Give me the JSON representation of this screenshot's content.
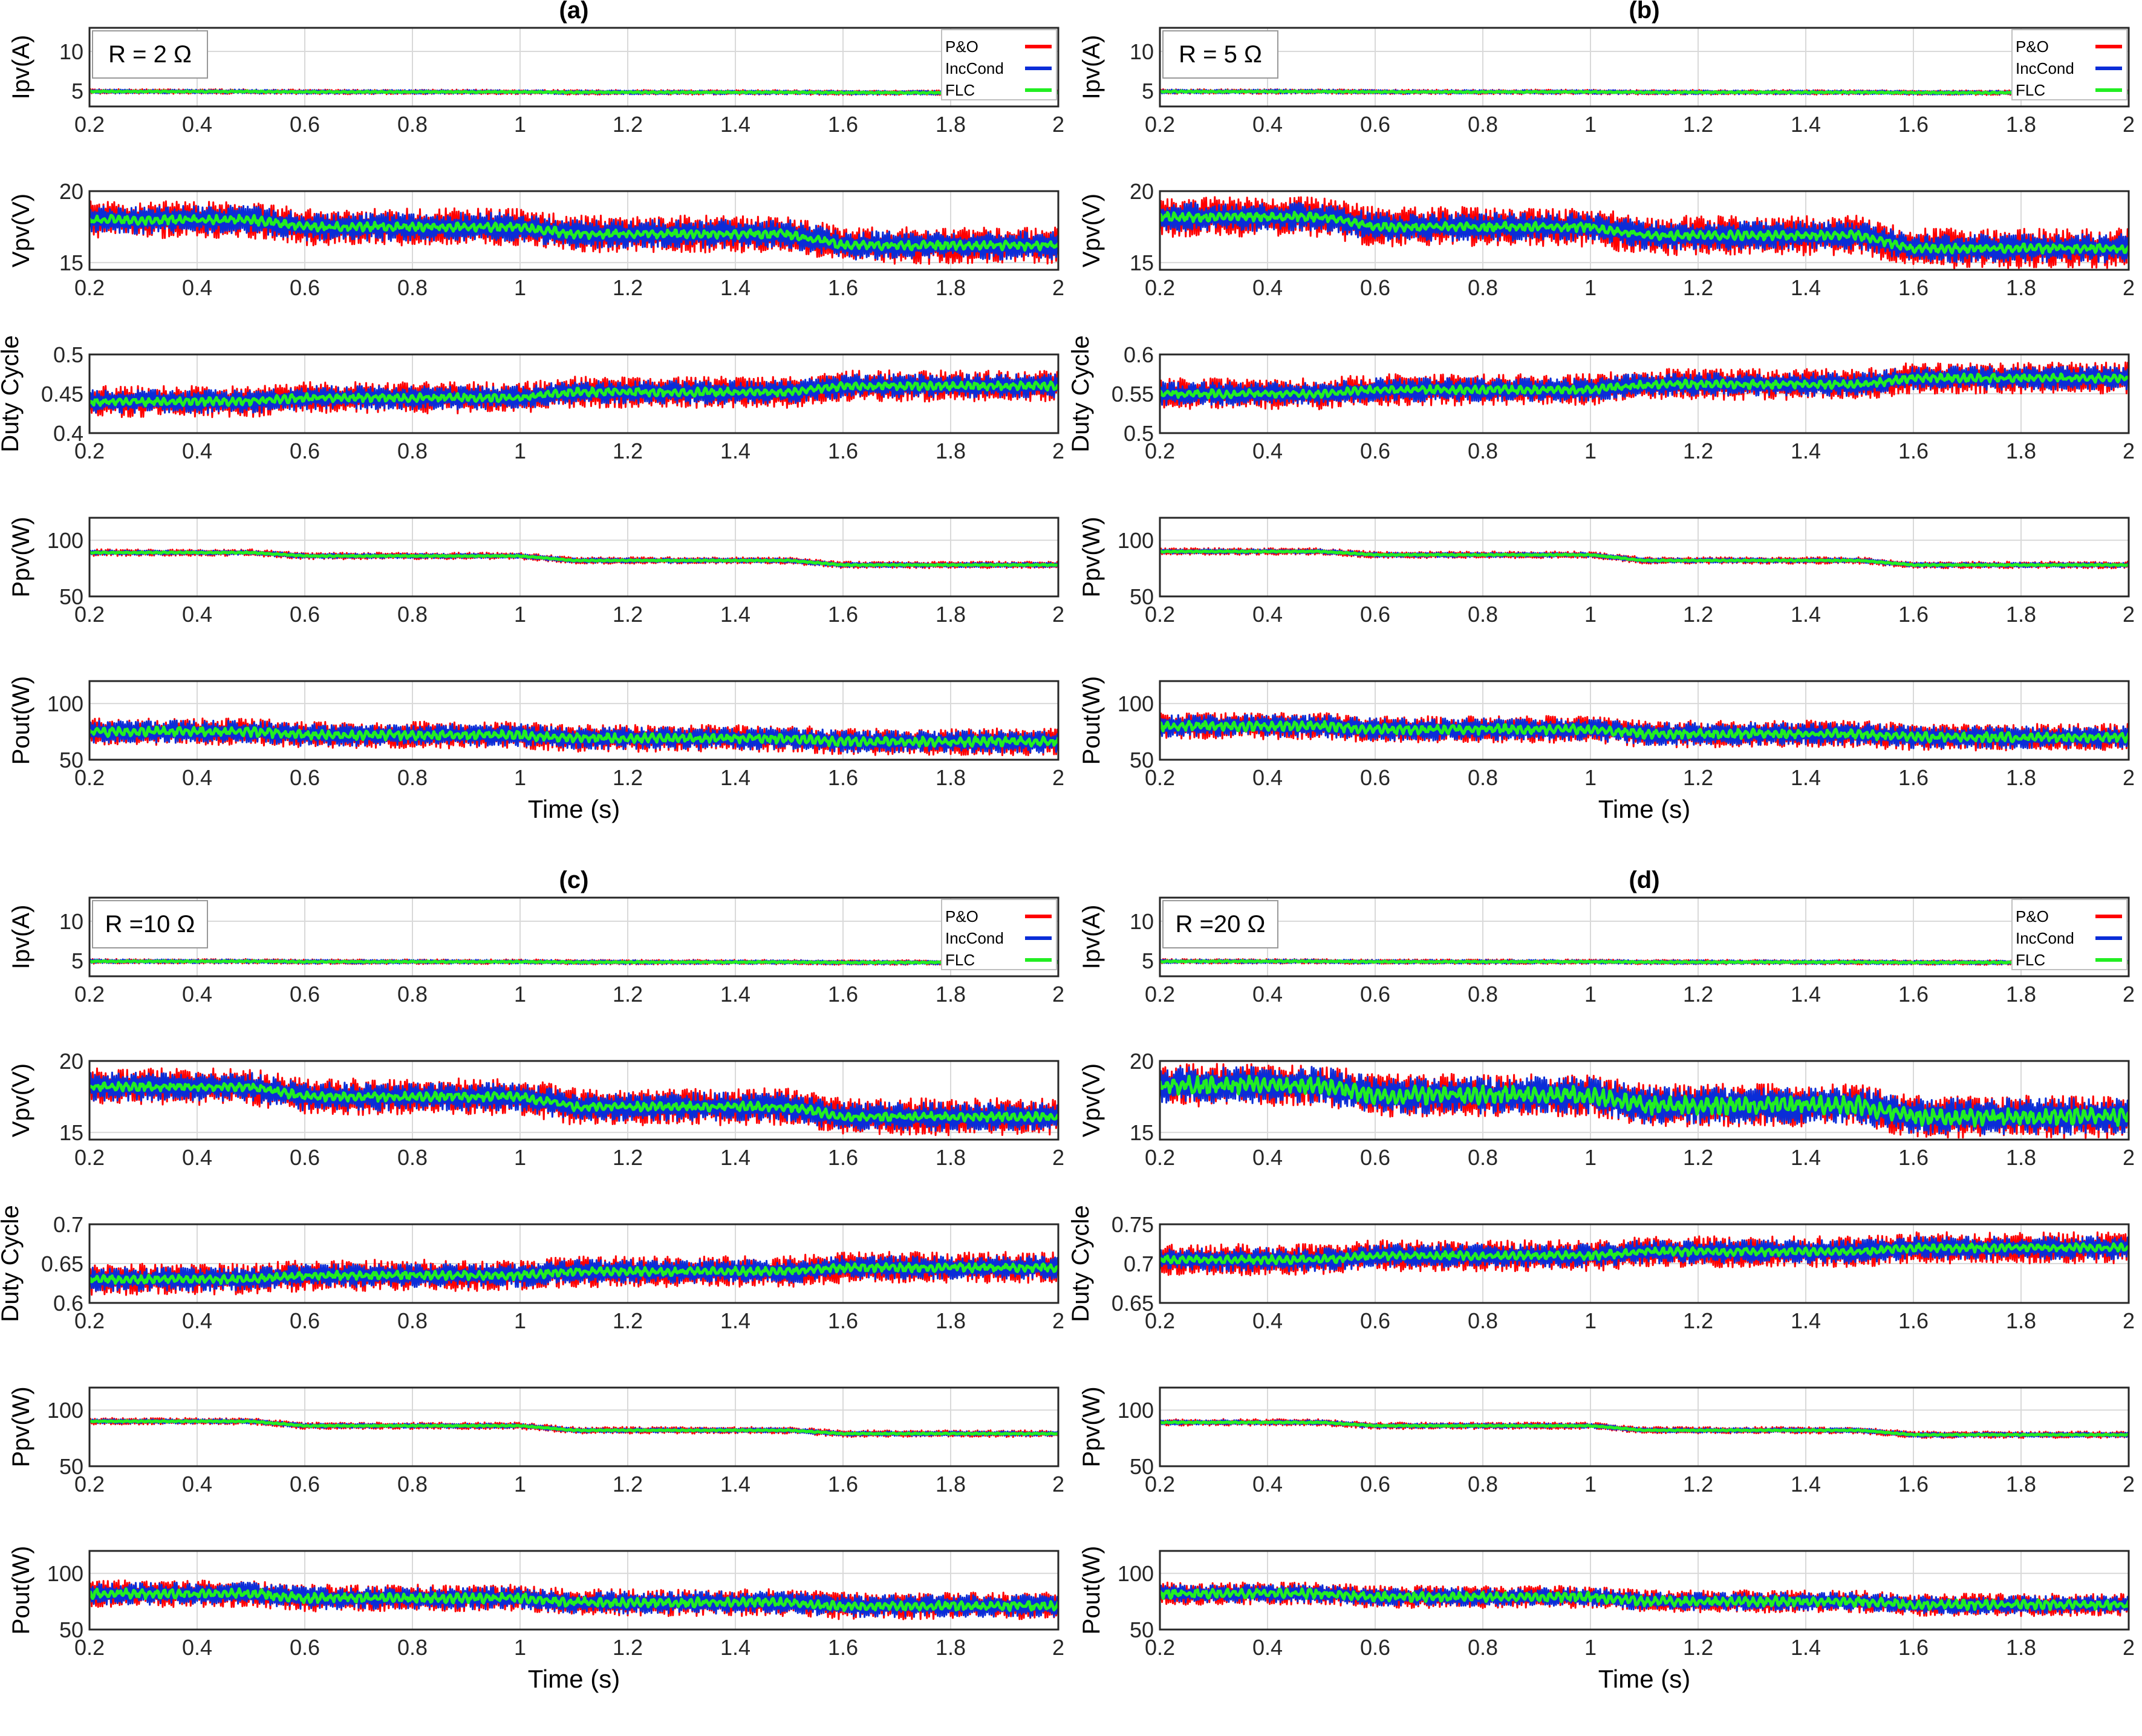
{
  "figure": {
    "legend": [
      "P&O",
      "IncCond",
      "FLC"
    ],
    "series_colors": {
      "P&O": "#ff0000",
      "IncCond": "#0a2dd8",
      "FLC": "#22ee22"
    },
    "x_label": "Time (s)",
    "x_ticks": [
      "0.2",
      "0.4",
      "0.6",
      "0.8",
      "1",
      "1.2",
      "1.4",
      "1.6",
      "1.8",
      "2"
    ]
  },
  "chart_data": [
    {
      "type": "line",
      "panel": "(a)",
      "annotation": "R = 2 Ω",
      "x": [
        0.2,
        0.5,
        0.6,
        1.0,
        1.1,
        1.5,
        1.6,
        2.0
      ],
      "xlim": [
        0.2,
        2
      ],
      "xlabel": "Time (s)",
      "subplots": [
        {
          "ylabel": "Ipv(A)",
          "ylim": [
            3,
            13
          ],
          "yticks": [
            "5",
            "10"
          ],
          "baseline": [
            4.9,
            4.9,
            4.85,
            4.85,
            4.8,
            4.8,
            4.75,
            4.75
          ],
          "noise": {
            "P&O": 0.3,
            "IncCond": 0.25,
            "FLC": 0.08
          }
        },
        {
          "ylabel": "Vpv(V)",
          "ylim": [
            14.5,
            20
          ],
          "yticks": [
            "15",
            "20"
          ],
          "baseline": [
            18,
            18,
            17.5,
            17.5,
            17,
            17,
            16.2,
            16.2
          ],
          "noise": {
            "P&O": 1.3,
            "IncCond": 1.0,
            "FLC": 0.3
          }
        },
        {
          "ylabel": "Duty Cycle",
          "ylim": [
            0.4,
            0.5
          ],
          "yticks": [
            "0.4",
            "0.45",
            "0.5"
          ],
          "baseline": [
            0.44,
            0.44,
            0.445,
            0.445,
            0.452,
            0.452,
            0.46,
            0.46
          ],
          "noise": {
            "P&O": 0.02,
            "IncCond": 0.015,
            "FLC": 0.005
          }
        },
        {
          "ylabel": "Ppv(W)",
          "ylim": [
            50,
            120
          ],
          "yticks": [
            "50",
            "100"
          ],
          "baseline": [
            89,
            89,
            86,
            86,
            82,
            82,
            78,
            78
          ],
          "noise": {
            "P&O": 3,
            "IncCond": 2,
            "FLC": 0.5
          }
        },
        {
          "ylabel": "Pout(W)",
          "ylim": [
            50,
            120
          ],
          "yticks": [
            "50",
            "100"
          ],
          "baseline": [
            75,
            75,
            72,
            72,
            69,
            69,
            66,
            66
          ],
          "noise": {
            "P&O": 12,
            "IncCond": 10,
            "FLC": 4
          }
        }
      ]
    },
    {
      "type": "line",
      "panel": "(b)",
      "annotation": "R = 5 Ω",
      "x": [
        0.2,
        0.5,
        0.6,
        1.0,
        1.1,
        1.5,
        1.6,
        2.0
      ],
      "xlim": [
        0.2,
        2
      ],
      "xlabel": "Time (s)",
      "subplots": [
        {
          "ylabel": "Ipv(A)",
          "ylim": [
            3,
            13
          ],
          "yticks": [
            "5",
            "10"
          ],
          "baseline": [
            4.9,
            4.9,
            4.85,
            4.85,
            4.8,
            4.8,
            4.75,
            4.75
          ],
          "noise": {
            "P&O": 0.3,
            "IncCond": 0.25,
            "FLC": 0.08
          }
        },
        {
          "ylabel": "Vpv(V)",
          "ylim": [
            14.5,
            20
          ],
          "yticks": [
            "15",
            "20"
          ],
          "baseline": [
            18.2,
            18.2,
            17.5,
            17.5,
            16.9,
            16.9,
            16,
            16
          ],
          "noise": {
            "P&O": 1.4,
            "IncCond": 1.0,
            "FLC": 0.3
          }
        },
        {
          "ylabel": "Duty Cycle",
          "ylim": [
            0.5,
            0.6
          ],
          "yticks": [
            "0.5",
            "0.55",
            "0.6"
          ],
          "baseline": [
            0.55,
            0.55,
            0.555,
            0.555,
            0.562,
            0.562,
            0.57,
            0.57
          ],
          "noise": {
            "P&O": 0.02,
            "IncCond": 0.015,
            "FLC": 0.005
          }
        },
        {
          "ylabel": "Ppv(W)",
          "ylim": [
            50,
            120
          ],
          "yticks": [
            "50",
            "100"
          ],
          "baseline": [
            90,
            90,
            87,
            87,
            82,
            82,
            78,
            78
          ],
          "noise": {
            "P&O": 3,
            "IncCond": 2,
            "FLC": 0.5
          }
        },
        {
          "ylabel": "Pout(W)",
          "ylim": [
            50,
            120
          ],
          "yticks": [
            "50",
            "100"
          ],
          "baseline": [
            80,
            80,
            77,
            77,
            73,
            73,
            70,
            70
          ],
          "noise": {
            "P&O": 12,
            "IncCond": 10,
            "FLC": 4
          }
        }
      ]
    },
    {
      "type": "line",
      "panel": "(c)",
      "annotation": "R =10 Ω",
      "x": [
        0.2,
        0.5,
        0.6,
        1.0,
        1.1,
        1.5,
        1.6,
        2.0
      ],
      "xlim": [
        0.2,
        2
      ],
      "xlabel": "Time (s)",
      "subplots": [
        {
          "ylabel": "Ipv(A)",
          "ylim": [
            3,
            13
          ],
          "yticks": [
            "5",
            "10"
          ],
          "baseline": [
            4.9,
            4.9,
            4.85,
            4.85,
            4.8,
            4.8,
            4.75,
            4.75
          ],
          "noise": {
            "P&O": 0.3,
            "IncCond": 0.25,
            "FLC": 0.08
          }
        },
        {
          "ylabel": "Vpv(V)",
          "ylim": [
            14.5,
            20
          ],
          "yticks": [
            "15",
            "20"
          ],
          "baseline": [
            18.2,
            18.2,
            17.5,
            17.5,
            16.8,
            16.8,
            16.1,
            16.1
          ],
          "noise": {
            "P&O": 1.3,
            "IncCond": 1.0,
            "FLC": 0.3
          }
        },
        {
          "ylabel": "Duty Cycle",
          "ylim": [
            0.6,
            0.7
          ],
          "yticks": [
            "0.6",
            "0.65",
            "0.7"
          ],
          "baseline": [
            0.63,
            0.63,
            0.635,
            0.635,
            0.64,
            0.64,
            0.645,
            0.645
          ],
          "noise": {
            "P&O": 0.02,
            "IncCond": 0.015,
            "FLC": 0.005
          }
        },
        {
          "ylabel": "Ppv(W)",
          "ylim": [
            50,
            120
          ],
          "yticks": [
            "50",
            "100"
          ],
          "baseline": [
            90,
            90,
            86,
            86,
            82,
            82,
            79,
            79
          ],
          "noise": {
            "P&O": 3,
            "IncCond": 2,
            "FLC": 0.5
          }
        },
        {
          "ylabel": "Pout(W)",
          "ylim": [
            50,
            120
          ],
          "yticks": [
            "50",
            "100"
          ],
          "baseline": [
            82,
            82,
            78,
            78,
            74,
            74,
            71,
            71
          ],
          "noise": {
            "P&O": 12,
            "IncCond": 10,
            "FLC": 4
          }
        }
      ]
    },
    {
      "type": "line",
      "panel": "(d)",
      "annotation": "R =20 Ω",
      "x": [
        0.2,
        0.5,
        0.6,
        1.0,
        1.1,
        1.5,
        1.6,
        2.0
      ],
      "xlim": [
        0.2,
        2
      ],
      "xlabel": "Time (s)",
      "subplots": [
        {
          "ylabel": "Ipv(A)",
          "ylim": [
            3,
            13
          ],
          "yticks": [
            "5",
            "10"
          ],
          "baseline": [
            4.9,
            4.9,
            4.85,
            4.85,
            4.8,
            4.8,
            4.75,
            4.75
          ],
          "noise": {
            "P&O": 0.3,
            "IncCond": 0.25,
            "FLC": 0.08
          }
        },
        {
          "ylabel": "Vpv(V)",
          "ylim": [
            14.5,
            20
          ],
          "yticks": [
            "15",
            "20"
          ],
          "baseline": [
            18.3,
            18.3,
            17.6,
            17.6,
            16.9,
            16.9,
            16.1,
            16.1
          ],
          "noise": {
            "P&O": 1.5,
            "IncCond": 1.3,
            "FLC": 0.6
          }
        },
        {
          "ylabel": "Duty Cycle",
          "ylim": [
            0.65,
            0.75
          ],
          "yticks": [
            "0.65",
            "0.7",
            "0.75"
          ],
          "baseline": [
            0.705,
            0.705,
            0.71,
            0.71,
            0.715,
            0.715,
            0.72,
            0.72
          ],
          "noise": {
            "P&O": 0.02,
            "IncCond": 0.015,
            "FLC": 0.005
          }
        },
        {
          "ylabel": "Ppv(W)",
          "ylim": [
            50,
            120
          ],
          "yticks": [
            "50",
            "100"
          ],
          "baseline": [
            89,
            89,
            86,
            86,
            82,
            82,
            78,
            78
          ],
          "noise": {
            "P&O": 3,
            "IncCond": 2,
            "FLC": 0.5
          }
        },
        {
          "ylabel": "Pout(W)",
          "ylim": [
            50,
            120
          ],
          "yticks": [
            "50",
            "100"
          ],
          "baseline": [
            82,
            82,
            79,
            79,
            75,
            75,
            72,
            72
          ],
          "noise": {
            "P&O": 10,
            "IncCond": 8,
            "FLC": 4
          }
        }
      ]
    }
  ]
}
